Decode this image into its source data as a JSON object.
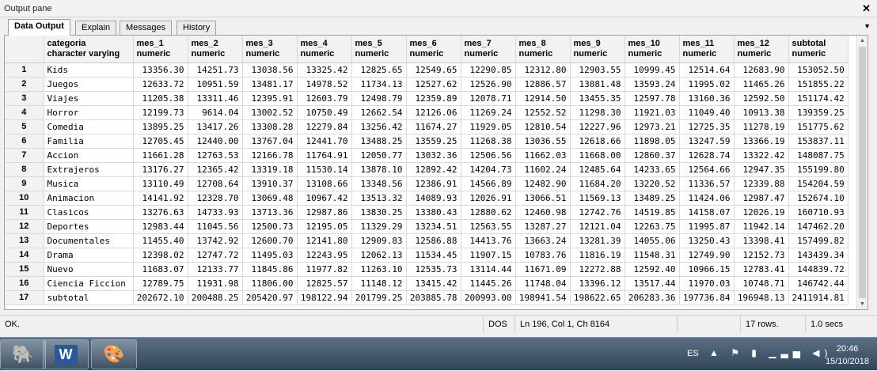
{
  "pane": {
    "title": "Output pane",
    "close_glyph": "✕"
  },
  "tabs": [
    {
      "label": "Data Output",
      "active": true
    },
    {
      "label": "Explain",
      "active": false
    },
    {
      "label": "Messages",
      "active": false
    },
    {
      "label": "History",
      "active": false
    }
  ],
  "tab_menu_glyph": "▼",
  "grid": {
    "columns": [
      {
        "name": "categoria",
        "type": "character varying"
      },
      {
        "name": "mes_1",
        "type": "numeric"
      },
      {
        "name": "mes_2",
        "type": "numeric"
      },
      {
        "name": "mes_3",
        "type": "numeric"
      },
      {
        "name": "mes_4",
        "type": "numeric"
      },
      {
        "name": "mes_5",
        "type": "numeric"
      },
      {
        "name": "mes_6",
        "type": "numeric"
      },
      {
        "name": "mes_7",
        "type": "numeric"
      },
      {
        "name": "mes_8",
        "type": "numeric"
      },
      {
        "name": "mes_9",
        "type": "numeric"
      },
      {
        "name": "mes_10",
        "type": "numeric"
      },
      {
        "name": "mes_11",
        "type": "numeric"
      },
      {
        "name": "mes_12",
        "type": "numeric"
      },
      {
        "name": "subtotal",
        "type": "numeric"
      }
    ],
    "rows": [
      [
        "1",
        "Kids",
        "13356.30",
        "14251.73",
        "13038.56",
        "13325.42",
        "12825.65",
        "12549.65",
        "12290.85",
        "12312.80",
        "12903.55",
        "10999.45",
        "12514.64",
        "12683.90",
        "153052.50"
      ],
      [
        "2",
        "Juegos",
        "12633.72",
        "10951.59",
        "13481.17",
        "14978.52",
        "11734.13",
        "12527.62",
        "12526.90",
        "12886.57",
        "13081.48",
        "13593.24",
        "11995.02",
        "11465.26",
        "151855.22"
      ],
      [
        "3",
        "Viajes",
        "11205.38",
        "13311.46",
        "12395.91",
        "12603.79",
        "12498.79",
        "12359.89",
        "12078.71",
        "12914.50",
        "13455.35",
        "12597.78",
        "13160.36",
        "12592.50",
        "151174.42"
      ],
      [
        "4",
        "Horror",
        "12199.73",
        "9614.04",
        "13002.52",
        "10750.49",
        "12662.54",
        "12126.06",
        "11269.24",
        "12552.52",
        "11298.30",
        "11921.03",
        "11049.40",
        "10913.38",
        "139359.25"
      ],
      [
        "5",
        "Comedia",
        "13895.25",
        "13417.26",
        "13308.28",
        "12279.84",
        "13256.42",
        "11674.27",
        "11929.05",
        "12810.54",
        "12227.96",
        "12973.21",
        "12725.35",
        "11278.19",
        "151775.62"
      ],
      [
        "6",
        "Familia",
        "12705.45",
        "12440.00",
        "13767.04",
        "12441.70",
        "13488.25",
        "13559.25",
        "11268.38",
        "13036.55",
        "12618.66",
        "11898.05",
        "13247.59",
        "13366.19",
        "153837.11"
      ],
      [
        "7",
        "Accion",
        "11661.28",
        "12763.53",
        "12166.78",
        "11764.91",
        "12050.77",
        "13032.36",
        "12506.56",
        "11662.03",
        "11668.00",
        "12860.37",
        "12628.74",
        "13322.42",
        "148087.75"
      ],
      [
        "8",
        "Extrajeros",
        "13176.27",
        "12365.42",
        "13319.18",
        "11530.14",
        "13878.10",
        "12892.42",
        "14204.73",
        "11602.24",
        "12485.64",
        "14233.65",
        "12564.66",
        "12947.35",
        "155199.80"
      ],
      [
        "9",
        "Musica",
        "13110.49",
        "12708.64",
        "13910.37",
        "13108.66",
        "13348.56",
        "12386.91",
        "14566.89",
        "12482.90",
        "11684.20",
        "13220.52",
        "11336.57",
        "12339.88",
        "154204.59"
      ],
      [
        "10",
        "Animacion",
        "14141.92",
        "12328.70",
        "13069.48",
        "10967.42",
        "13513.32",
        "14089.93",
        "12026.91",
        "13066.51",
        "11569.13",
        "13489.25",
        "11424.06",
        "12987.47",
        "152674.10"
      ],
      [
        "11",
        "Clasicos",
        "13276.63",
        "14733.93",
        "13713.36",
        "12987.86",
        "13830.25",
        "13380.43",
        "12880.62",
        "12460.98",
        "12742.76",
        "14519.85",
        "14158.07",
        "12026.19",
        "160710.93"
      ],
      [
        "12",
        "Deportes",
        "12983.44",
        "11045.56",
        "12500.73",
        "12195.05",
        "11329.29",
        "13234.51",
        "12563.55",
        "13287.27",
        "12121.04",
        "12263.75",
        "11995.87",
        "11942.14",
        "147462.20"
      ],
      [
        "13",
        "Documentales",
        "11455.40",
        "13742.92",
        "12600.70",
        "12141.80",
        "12909.83",
        "12586.88",
        "14413.76",
        "13663.24",
        "13281.39",
        "14055.06",
        "13250.43",
        "13398.41",
        "157499.82"
      ],
      [
        "14",
        "Drama",
        "12398.02",
        "12747.72",
        "11495.03",
        "12243.95",
        "12062.13",
        "11534.45",
        "11907.15",
        "10783.76",
        "11816.19",
        "11548.31",
        "12749.90",
        "12152.73",
        "143439.34"
      ],
      [
        "15",
        "Nuevo",
        "11683.07",
        "12133.77",
        "11845.86",
        "11977.82",
        "11263.10",
        "12535.73",
        "13114.44",
        "11671.09",
        "12272.88",
        "12592.40",
        "10966.15",
        "12783.41",
        "144839.72"
      ],
      [
        "16",
        "Ciencia Ficcion",
        "12789.75",
        "11931.98",
        "11806.00",
        "12825.57",
        "11148.12",
        "13415.42",
        "11445.26",
        "11748.04",
        "13396.12",
        "13517.44",
        "11970.03",
        "10748.71",
        "146742.44"
      ],
      [
        "17",
        "subtotal",
        "202672.10",
        "200488.25",
        "205420.97",
        "198122.94",
        "201799.25",
        "203885.78",
        "200993.00",
        "198941.54",
        "198622.65",
        "206283.36",
        "197736.84",
        "196948.13",
        "2411914.81"
      ]
    ]
  },
  "status": {
    "message": "OK.",
    "encoding": "DOS",
    "cursor": "Ln 196, Col 1, Ch 8164",
    "rows": "17 rows.",
    "time": "1.0 secs"
  },
  "taskbar": {
    "apps": [
      {
        "name": "pgadmin",
        "glyph": "🐘"
      },
      {
        "name": "word",
        "glyph": "W"
      },
      {
        "name": "paint",
        "glyph": "🎨"
      }
    ],
    "tray": {
      "language": "ES",
      "icons": "▲ ⚑ ▮ ▁▃▅ ◀)",
      "time": "20:46",
      "date": "15/10/2018"
    }
  }
}
